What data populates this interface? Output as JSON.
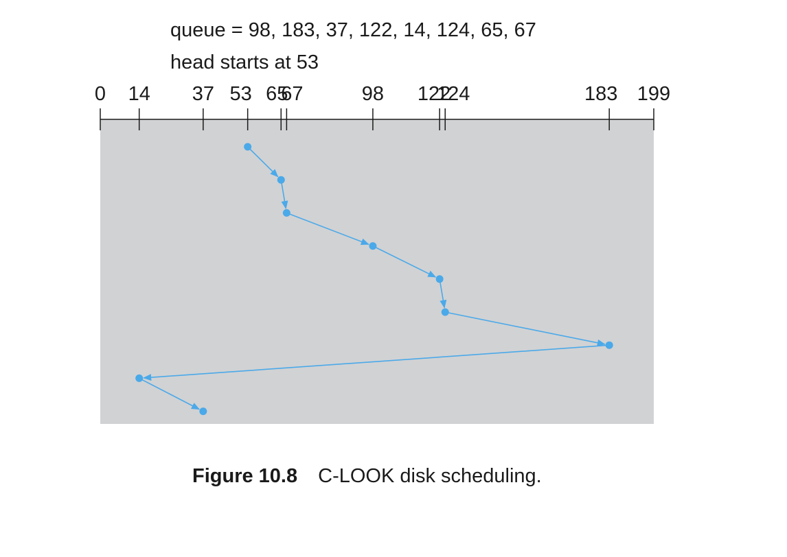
{
  "header": {
    "queue_text": "queue = 98, 183, 37, 122, 14, 124, 65, 67",
    "head_text": "head starts at 53"
  },
  "caption": {
    "label": "Figure 10.8",
    "text": "C-LOOK disk scheduling."
  },
  "colors": {
    "path": "#4aa9e9",
    "panel": "#d1d2d4",
    "axis": "#1a1a1a"
  },
  "chart_data": {
    "type": "line",
    "title": "C-LOOK disk scheduling",
    "algorithm": "C-LOOK",
    "queue": [
      98,
      183,
      37,
      122,
      14,
      124,
      65,
      67
    ],
    "head_start": 53,
    "xlim": [
      0,
      199
    ],
    "tick_labels": [
      "0",
      "14",
      "37",
      "53",
      "65",
      "67",
      "98",
      "122",
      "124",
      "183",
      "199"
    ],
    "tick_values": [
      0,
      14,
      37,
      53,
      65,
      67,
      98,
      122,
      124,
      183,
      199
    ],
    "service_order": [
      53,
      65,
      67,
      98,
      122,
      124,
      183,
      14,
      37
    ]
  }
}
